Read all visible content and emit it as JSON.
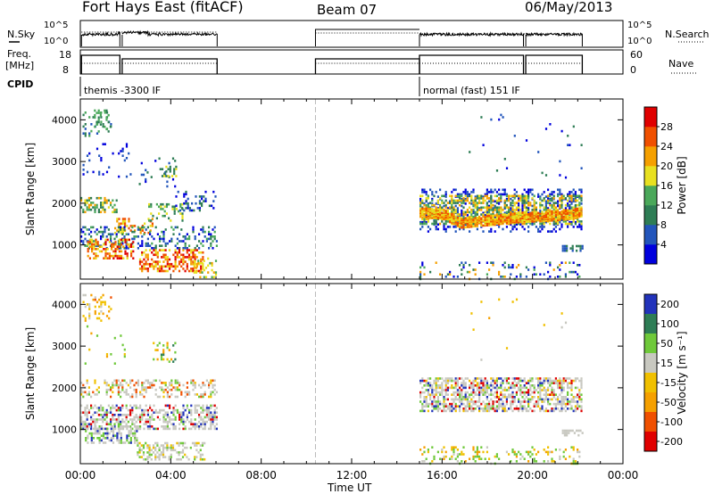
{
  "header": {
    "station": "Fort Hays East (fitACF)",
    "beam": "Beam 07",
    "date": "06/May/2013"
  },
  "top_panels": {
    "nsky_label": "N.Sky",
    "nsky_ticks": [
      "10^5",
      "10^0"
    ],
    "nsearch_label": "N.Search",
    "nsearch_ticks": [
      "10^5",
      "10^0"
    ],
    "freq_label": "Freq.",
    "freq_unit": "[MHz]",
    "freq_ticks": [
      "18",
      "8"
    ],
    "nave_label": "Nave",
    "nave_ticks": [
      "60",
      "0"
    ],
    "cpid_label": "CPID",
    "cpid_segments": [
      {
        "label": "themis -3300 IF",
        "start_h": 0,
        "end_h": 15
      },
      {
        "label": "normal (fast) 151 IF",
        "start_h": 15,
        "end_h": 22.2
      }
    ]
  },
  "time_axis": {
    "title": "Time UT",
    "ticks": [
      "00:00",
      "04:00",
      "08:00",
      "12:00",
      "16:00",
      "20:00",
      "00:00"
    ]
  },
  "chart_data": [
    {
      "type": "heatmap",
      "name": "power",
      "ylabel": "Slant Range [km]",
      "yticks": [
        "1000",
        "2000",
        "3000",
        "4000"
      ],
      "ylim": [
        180,
        4500
      ],
      "xlim_hours": [
        0,
        24
      ],
      "colorbar_label": "Power [dB]",
      "colorbar_ticks": [
        "4",
        "8",
        "12",
        "16",
        "20",
        "24",
        "28"
      ],
      "colorbar_range": [
        0,
        30
      ],
      "colors": [
        "#0000dd",
        "#2255bb",
        "#2e7d55",
        "#4aa85a",
        "#e8e020",
        "#f5a000",
        "#f05000",
        "#e00000"
      ],
      "scatter_blocks": [
        {
          "t0": 0.1,
          "t1": 1.4,
          "r0": 3600,
          "r1": 4200,
          "density": 0.18,
          "levels": [
            1,
            2,
            3
          ]
        },
        {
          "t0": 0.6,
          "t1": 1.3,
          "r0": 3700,
          "r1": 4250,
          "density": 0.3,
          "levels": [
            2,
            3
          ]
        },
        {
          "t0": 0.1,
          "t1": 2.2,
          "r0": 2600,
          "r1": 3500,
          "density": 0.08,
          "levels": [
            0,
            1
          ]
        },
        {
          "t0": 2.5,
          "t1": 4.2,
          "r0": 2400,
          "r1": 3100,
          "density": 0.1,
          "levels": [
            0,
            1,
            2
          ]
        },
        {
          "t0": 3.5,
          "t1": 4.2,
          "r0": 2650,
          "r1": 2900,
          "density": 0.45,
          "levels": [
            2,
            4
          ]
        },
        {
          "t0": 0.0,
          "t1": 1.6,
          "r0": 1800,
          "r1": 2150,
          "density": 0.5,
          "levels": [
            2,
            3,
            4,
            5
          ]
        },
        {
          "t0": 1.5,
          "t1": 3.2,
          "r0": 1300,
          "r1": 1650,
          "density": 0.45,
          "levels": [
            4,
            5,
            6
          ]
        },
        {
          "t0": 3.0,
          "t1": 4.6,
          "r0": 1600,
          "r1": 2000,
          "density": 0.35,
          "levels": [
            2,
            3,
            4
          ]
        },
        {
          "t0": 4.2,
          "t1": 6.0,
          "r0": 1850,
          "r1": 2300,
          "density": 0.25,
          "levels": [
            0,
            1,
            2
          ]
        },
        {
          "t0": 0.0,
          "t1": 6.0,
          "r0": 900,
          "r1": 1450,
          "density": 0.3,
          "levels": [
            0,
            1,
            2,
            3
          ]
        },
        {
          "t0": 0.3,
          "t1": 2.3,
          "r0": 700,
          "r1": 1150,
          "density": 0.5,
          "levels": [
            4,
            5,
            6,
            7
          ]
        },
        {
          "t0": 2.6,
          "t1": 5.4,
          "r0": 350,
          "r1": 900,
          "density": 0.5,
          "levels": [
            4,
            5,
            6,
            7
          ]
        },
        {
          "t0": 5.0,
          "t1": 6.0,
          "r0": 200,
          "r1": 700,
          "density": 0.35,
          "levels": [
            3,
            4,
            5
          ]
        },
        {
          "t0": 15.0,
          "t1": 22.1,
          "r0": 200,
          "r1": 600,
          "density": 0.16,
          "levels": [
            0,
            1,
            2,
            3,
            5
          ]
        },
        {
          "t0": 15.0,
          "t1": 22.2,
          "r0": 1300,
          "r1": 2350,
          "density": 0.28,
          "levels": [
            0,
            1
          ]
        },
        {
          "t0": 15.0,
          "t1": 22.2,
          "r0": 1500,
          "r1": 2200,
          "density": 0.55,
          "levels": [
            2,
            3,
            4,
            5
          ]
        },
        {
          "t0": 21.3,
          "t1": 22.2,
          "r0": 880,
          "r1": 1000,
          "density": 0.5,
          "levels": [
            1,
            2
          ]
        },
        {
          "t0": 17.0,
          "t1": 22.2,
          "r0": 2600,
          "r1": 4200,
          "density": 0.012,
          "levels": [
            0,
            1,
            2
          ]
        }
      ],
      "band": {
        "t0": 15.0,
        "t1": 22.2,
        "levels": [
          4,
          5,
          6
        ],
        "halfwidth_km": 120,
        "center_km": [
          [
            15.0,
            1800
          ],
          [
            16.0,
            1780
          ],
          [
            16.8,
            1560
          ],
          [
            17.5,
            1600
          ],
          [
            18.5,
            1640
          ],
          [
            19.5,
            1700
          ],
          [
            20.5,
            1720
          ],
          [
            21.5,
            1760
          ],
          [
            22.2,
            1820
          ]
        ]
      }
    },
    {
      "type": "heatmap",
      "name": "velocity",
      "ylabel": "Slant Range [km]",
      "yticks": [
        "1000",
        "2000",
        "3000",
        "4000"
      ],
      "ylim": [
        180,
        4500
      ],
      "xlim_hours": [
        0,
        24
      ],
      "colorbar_label": "Velocity [m s⁻¹]",
      "colorbar_ticks": [
        "200",
        "100",
        "50",
        "15",
        "-15",
        "-50",
        "-100",
        "-200"
      ],
      "colorbar_range": [
        -250,
        250
      ],
      "colors": [
        "#2233bb",
        "#2e7d55",
        "#6fc93a",
        "#c8c8c0",
        "#f0c000",
        "#f5a000",
        "#f05000",
        "#e00000"
      ],
      "scatter_blocks": [
        {
          "t0": 0.1,
          "t1": 1.4,
          "r0": 3600,
          "r1": 4250,
          "density": 0.2,
          "levels": [
            3,
            4,
            5,
            6
          ]
        },
        {
          "t0": 0.1,
          "t1": 2.2,
          "r0": 2600,
          "r1": 3500,
          "density": 0.06,
          "levels": [
            2,
            4,
            5
          ]
        },
        {
          "t0": 3.2,
          "t1": 4.2,
          "r0": 2650,
          "r1": 3100,
          "density": 0.3,
          "levels": [
            1,
            2,
            4,
            5
          ]
        },
        {
          "t0": 0.0,
          "t1": 6.0,
          "r0": 1800,
          "r1": 2200,
          "density": 0.4,
          "levels": [
            3,
            3,
            3,
            2,
            4,
            6
          ]
        },
        {
          "t0": 0.0,
          "t1": 6.0,
          "r0": 1000,
          "r1": 1600,
          "density": 0.55,
          "levels": [
            3,
            3,
            3,
            3,
            2,
            0,
            7
          ]
        },
        {
          "t0": 0.2,
          "t1": 2.5,
          "r0": 700,
          "r1": 1100,
          "density": 0.5,
          "levels": [
            3,
            3,
            3,
            2,
            0
          ]
        },
        {
          "t0": 2.5,
          "t1": 5.5,
          "r0": 300,
          "r1": 700,
          "density": 0.45,
          "levels": [
            3,
            3,
            3,
            2,
            4
          ]
        },
        {
          "t0": 15.0,
          "t1": 22.1,
          "r0": 180,
          "r1": 600,
          "density": 0.22,
          "levels": [
            2,
            2,
            4,
            5,
            3
          ]
        },
        {
          "t0": 15.0,
          "t1": 22.2,
          "r0": 1450,
          "r1": 2250,
          "density": 0.6,
          "levels": [
            3,
            3,
            3,
            3,
            3,
            2,
            0,
            7,
            4
          ]
        },
        {
          "t0": 21.3,
          "t1": 22.2,
          "r0": 880,
          "r1": 1000,
          "density": 0.5,
          "levels": [
            3
          ]
        },
        {
          "t0": 17.0,
          "t1": 22.2,
          "r0": 2600,
          "r1": 4200,
          "density": 0.012,
          "levels": [
            3,
            4,
            5
          ]
        }
      ]
    }
  ]
}
